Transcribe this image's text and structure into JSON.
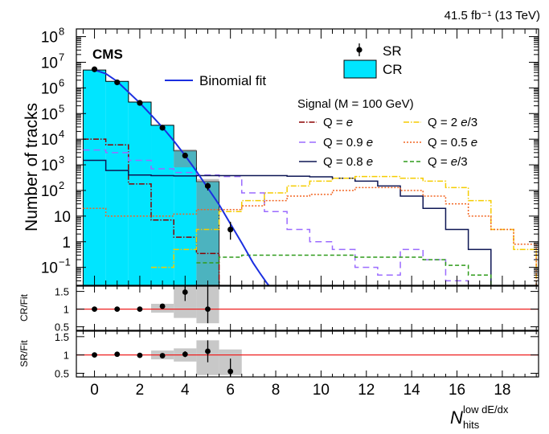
{
  "chart_data": {
    "type": "histogram",
    "lumi_label": "41.5 fb⁻¹ (13 TeV)",
    "experiment_label": "CMS",
    "x_label": {
      "main": "N",
      "sub": "hits",
      "sup": "low dE/dx"
    },
    "x_range": [
      -0.8,
      19.6
    ],
    "x_ticks": [
      0,
      2,
      4,
      6,
      8,
      10,
      12,
      14,
      16,
      18
    ],
    "main": {
      "y_label": "Number of tracks",
      "y_scale": "log",
      "y_range_exp": [
        -1.7,
        8.3
      ],
      "y_tick_labels": [
        {
          "exp": -1,
          "base": "10",
          "sup": "−1"
        },
        {
          "exp": 0,
          "base": "1",
          "sup": ""
        },
        {
          "exp": 1,
          "base": "10",
          "sup": ""
        },
        {
          "exp": 2,
          "base": "10",
          "sup": "2"
        },
        {
          "exp": 3,
          "base": "10",
          "sup": "3"
        },
        {
          "exp": 4,
          "base": "10",
          "sup": "4"
        },
        {
          "exp": 5,
          "base": "10",
          "sup": "5"
        },
        {
          "exp": 6,
          "base": "10",
          "sup": "6"
        },
        {
          "exp": 7,
          "base": "10",
          "sup": "7"
        },
        {
          "exp": 8,
          "base": "10",
          "sup": "8"
        }
      ],
      "cr": {
        "name": "CR",
        "color": "#00e5ff",
        "bins": [
          {
            "lo": -0.5,
            "hi": 0.5,
            "y": 5000000
          },
          {
            "lo": 0.5,
            "hi": 1.5,
            "y": 1800000
          },
          {
            "lo": 1.5,
            "hi": 2.5,
            "y": 280000
          },
          {
            "lo": 2.5,
            "hi": 3.5,
            "y": 35000
          },
          {
            "lo": 3.5,
            "hi": 4.5,
            "y": 3500
          },
          {
            "lo": 4.5,
            "hi": 5.5,
            "y": 220
          }
        ],
        "unc_bins": [
          {
            "lo": 3.5,
            "hi": 4.5,
            "ylo": 800,
            "yhi": 4000
          },
          {
            "lo": 4.5,
            "hi": 5.5,
            "ylo": 0.02,
            "yhi": 280
          }
        ]
      },
      "sr": {
        "name": "SR",
        "x": [
          0,
          1,
          2,
          3,
          4,
          5,
          6
        ],
        "y": [
          5300000,
          1650000,
          260000,
          28000,
          2300,
          150,
          3
        ],
        "err_lo": [
          5100000,
          1600000,
          250000,
          26000,
          2000,
          100,
          1.2
        ],
        "err_hi": [
          5500000,
          1700000,
          270000,
          30000,
          2600,
          200,
          6
        ]
      },
      "fit": {
        "name": "Binomial fit",
        "color": "#1b2fe0",
        "x": [
          0,
          0.5,
          1,
          1.5,
          2,
          2.5,
          3,
          3.5,
          4,
          4.5,
          5,
          5.5,
          6,
          6.5,
          7,
          7.3,
          7.6,
          7.8
        ],
        "y": [
          5000000,
          3600000,
          1800000,
          680000,
          260000,
          88000,
          29000,
          8600,
          2300,
          560,
          125,
          28,
          5,
          0.9,
          0.15,
          0.06,
          0.025,
          0.015
        ]
      },
      "legend": {
        "sr_label": "SR",
        "cr_label": "CR",
        "fit_label": "Binomial fit",
        "signal_header": "Signal (M = 100 GeV)"
      },
      "signals": [
        {
          "name": "Q = e",
          "label_main": "Q = ",
          "label_it": "e",
          "label_tail": "",
          "color": "#8b0000",
          "dash": "7,2,1.5,2",
          "edges": [
            -0.5,
            0.5,
            1.5,
            2.5,
            3.5,
            4.5,
            5.5
          ],
          "y": [
            10000,
            6000,
            180,
            7,
            1.5,
            0.35
          ]
        },
        {
          "name": "Q = 0.9 e",
          "label_main": "Q = 0.9 ",
          "label_it": "e",
          "label_tail": "",
          "color": "#9b6bff",
          "dash": "8,5",
          "edges": [
            -0.5,
            0.5,
            1.5,
            2.5,
            3.5,
            4.5,
            5.5,
            6.5,
            7.5,
            8.5,
            9.5,
            10.5,
            11.5,
            12.5,
            13.5,
            14.5,
            15.5,
            16.5
          ],
          "y": [
            3800,
            3000,
            1500,
            700,
            500,
            400,
            350,
            80,
            15,
            3,
            1,
            0.5,
            0.1,
            0.05,
            0.5,
            0.2,
            0.03
          ]
        },
        {
          "name": "Q = 0.8 e",
          "label_main": "Q = 0.8 ",
          "label_it": "e",
          "label_tail": "",
          "color": "#0d1654",
          "dash": "",
          "edges": [
            -0.5,
            0.5,
            1.5,
            2.5,
            3.5,
            4.5,
            5.5,
            6.5,
            7.5,
            8.5,
            9.5,
            10.5,
            11.5,
            12.5,
            13.5,
            14.5,
            15.5,
            16.5,
            17.5
          ],
          "y": [
            1500,
            600,
            400,
            380,
            370,
            380,
            380,
            380,
            380,
            360,
            340,
            300,
            230,
            150,
            60,
            20,
            3,
            0.5
          ]
        },
        {
          "name": "Q = 2 e/3",
          "label_main": "Q = 2 ",
          "label_it": "e",
          "label_tail": "/3",
          "color": "#f5cc00",
          "dash": "7,2,1.5,2",
          "edges": [
            2.5,
            3.5,
            4.5,
            5.5,
            6.5,
            7.5,
            8.5,
            9.5,
            10.5,
            11.5,
            12.5,
            13.5,
            14.5,
            15.5,
            16.5,
            17.5,
            18.5,
            19.5
          ],
          "y": [
            0.1,
            0.5,
            3,
            15,
            40,
            80,
            150,
            230,
            300,
            350,
            350,
            300,
            230,
            130,
            40,
            3,
            0.5
          ]
        },
        {
          "name": "Q = 0.5 e",
          "label_main": "Q = 0.5 ",
          "label_it": "e",
          "label_tail": "",
          "color": "#f26522",
          "dash": "2,2",
          "edges": [
            -0.5,
            0.5,
            1.5,
            2.5,
            3.5,
            4.5,
            5.5,
            6.5,
            7.5,
            8.5,
            9.5,
            10.5,
            11.5,
            12.5,
            13.5,
            14.5,
            15.5,
            16.5,
            17.5,
            18.5,
            19.5
          ],
          "y": [
            20,
            10,
            10,
            10,
            12,
            18,
            18,
            25,
            40,
            60,
            70,
            100,
            130,
            130,
            100,
            60,
            30,
            10,
            3,
            0.8
          ]
        },
        {
          "name": "Q = e/3",
          "label_main": "Q = ",
          "label_it": "e",
          "label_tail": "/3",
          "color": "#2e9b1a",
          "dash": "5,3",
          "edges": [
            4.5,
            5.5,
            6.5,
            7.5,
            8.5,
            9.5,
            10.5,
            11.5,
            12.5,
            13.5,
            14.5,
            15.5,
            16.5,
            17.5
          ],
          "y": [
            0.15,
            0.25,
            0.3,
            0.3,
            0.3,
            0.3,
            0.3,
            0.25,
            0.25,
            0.25,
            0.2,
            0.12,
            0.05
          ]
        }
      ]
    },
    "ratio_cr": {
      "y_label": "CR/Fit",
      "y_range": [
        0.4,
        1.65
      ],
      "y_ticks": [
        0.5,
        1,
        1.5
      ],
      "x": [
        0,
        1,
        2,
        3,
        4,
        5
      ],
      "y": [
        1.0,
        1.0,
        1.0,
        1.08,
        1.48,
        1.0
      ],
      "err_lo": [
        0.01,
        0.01,
        0.01,
        0.04,
        0.25,
        0.4
      ],
      "err_hi": [
        0.01,
        0.01,
        0.01,
        0.04,
        0.25,
        1.65
      ],
      "band": [
        {
          "lo": 2.5,
          "hi": 3.5,
          "ylo": 0.9,
          "yhi": 1.15
        },
        {
          "lo": 3.5,
          "hi": 4.5,
          "ylo": 0.75,
          "yhi": 1.65
        },
        {
          "lo": 4.5,
          "hi": 5.5,
          "ylo": 0.6,
          "yhi": 1.65
        }
      ]
    },
    "ratio_sr": {
      "y_label": "SR/Fit",
      "y_range": [
        0.4,
        1.65
      ],
      "y_ticks": [
        0.5,
        1,
        1.5
      ],
      "x": [
        0,
        1,
        2,
        3,
        4,
        5,
        6
      ],
      "y": [
        1.0,
        1.02,
        0.99,
        0.98,
        1.02,
        1.1,
        0.55
      ],
      "err_lo": [
        0.01,
        0.01,
        0.01,
        0.05,
        0.08,
        0.3,
        0.15
      ],
      "err_hi": [
        0.01,
        0.01,
        0.01,
        0.05,
        0.08,
        0.3,
        0.35
      ],
      "band": [
        {
          "lo": 2.5,
          "hi": 3.5,
          "ylo": 0.88,
          "yhi": 1.12
        },
        {
          "lo": 3.5,
          "hi": 4.5,
          "ylo": 0.82,
          "yhi": 1.18
        },
        {
          "lo": 4.5,
          "hi": 5.5,
          "ylo": 0.45,
          "yhi": 1.4
        },
        {
          "lo": 5.5,
          "hi": 6.5,
          "ylo": 0.45,
          "yhi": 1.15
        }
      ]
    }
  }
}
